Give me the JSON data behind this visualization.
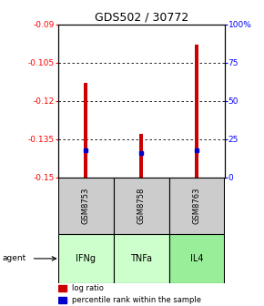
{
  "title": "GDS502 / 30772",
  "samples": [
    "GSM8753",
    "GSM8758",
    "GSM8763"
  ],
  "agents": [
    "IFNg",
    "TNFa",
    "IL4"
  ],
  "log_ratios": [
    -0.113,
    -0.133,
    -0.098
  ],
  "percentile_ranks": [
    18,
    16,
    18
  ],
  "ylim_left": [
    -0.15,
    -0.09
  ],
  "yticks_left": [
    -0.15,
    -0.135,
    -0.12,
    -0.105,
    -0.09
  ],
  "ytick_labels_left": [
    "-0.15",
    "-0.135",
    "-0.12",
    "-0.105",
    "-0.09"
  ],
  "yticks_right_vals": [
    0,
    25,
    50,
    75,
    100
  ],
  "ytick_labels_right": [
    "0",
    "25",
    "50",
    "75",
    "100%"
  ],
  "bar_bottom": -0.15,
  "bar_color": "#cc0000",
  "percentile_color": "#0000cc",
  "agent_colors": [
    "#ccffcc",
    "#ccffcc",
    "#99ee99"
  ],
  "sample_bg_color": "#cccccc",
  "grid_lines": [
    -0.105,
    -0.12,
    -0.135
  ],
  "bar_width": 0.07
}
